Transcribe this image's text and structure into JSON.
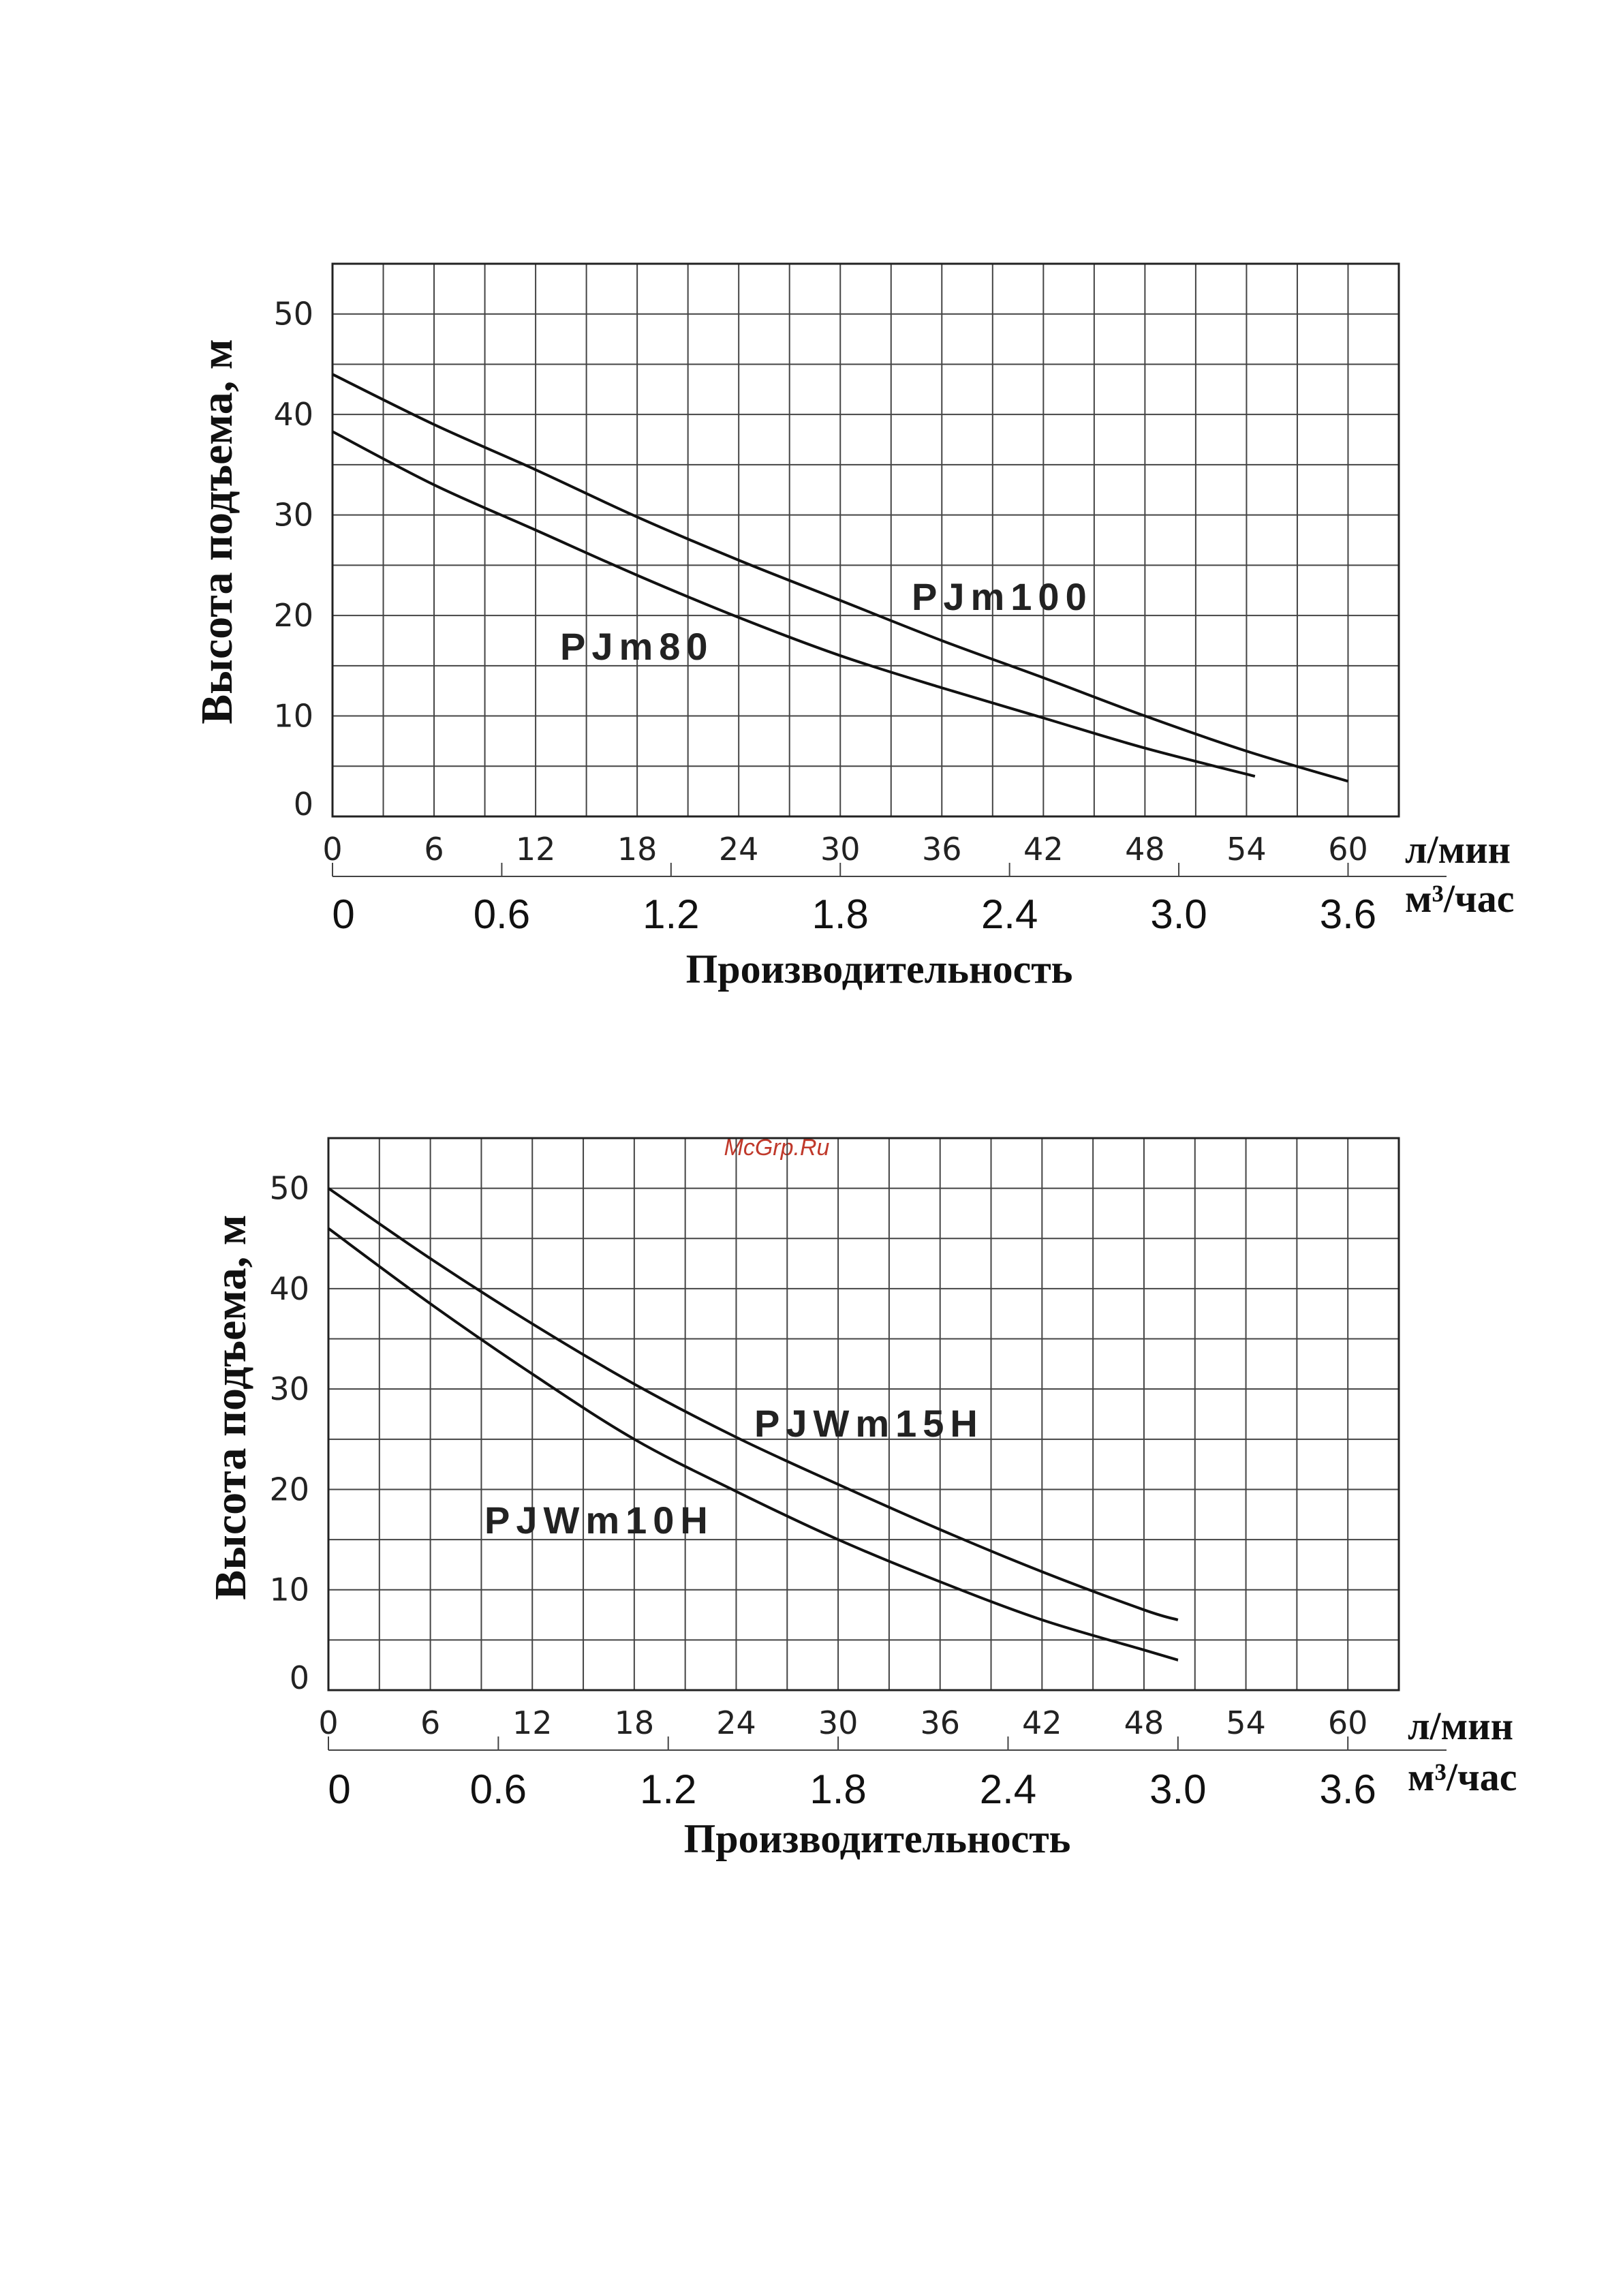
{
  "watermark": "McGrp.Ru",
  "chart_data": [
    {
      "type": "line",
      "ylabel": "Высота подъема, м",
      "xlabel": "Производительность",
      "x_unit_primary": "л/мин",
      "x_unit_secondary": "м³/час",
      "xticks": [
        "0",
        "6",
        "12",
        "18",
        "24",
        "30",
        "36",
        "42",
        "48",
        "54",
        "60"
      ],
      "x2ticks": [
        "0",
        "0.6",
        "1.2",
        "1.8",
        "2.4",
        "3.0",
        "3.6"
      ],
      "yticks": [
        "0",
        "10",
        "20",
        "30",
        "40",
        "50"
      ],
      "xlim": [
        0,
        63
      ],
      "ylim": [
        0,
        55
      ],
      "grid": true,
      "series": [
        {
          "name": "PJm100",
          "x": [
            0,
            6,
            12,
            18,
            24,
            30,
            36,
            42,
            48,
            54,
            60
          ],
          "y": [
            44,
            39,
            34.5,
            29.8,
            25.5,
            21.5,
            17.5,
            13.8,
            10,
            6.5,
            3.5
          ]
        },
        {
          "name": "PJm80",
          "x": [
            0,
            6,
            12,
            18,
            24,
            30,
            36,
            42,
            48,
            54.5
          ],
          "y": [
            38.3,
            33,
            28.5,
            24,
            19.8,
            16,
            12.8,
            9.8,
            6.8,
            4
          ]
        }
      ]
    },
    {
      "type": "line",
      "ylabel": "Высота подъема, м",
      "xlabel": "Производительность",
      "x_unit_primary": "л/мин",
      "x_unit_secondary": "м³/час",
      "xticks": [
        "0",
        "6",
        "12",
        "18",
        "24",
        "30",
        "36",
        "42",
        "48",
        "54",
        "60"
      ],
      "x2ticks": [
        "0",
        "0.6",
        "1.2",
        "1.8",
        "2.4",
        "3.0",
        "3.6"
      ],
      "yticks": [
        "0",
        "10",
        "20",
        "30",
        "40",
        "50"
      ],
      "xlim": [
        0,
        63
      ],
      "ylim": [
        0,
        55
      ],
      "grid": true,
      "series": [
        {
          "name": "PJWm15H",
          "x": [
            0,
            6,
            12,
            18,
            24,
            30,
            36,
            42,
            48,
            50
          ],
          "y": [
            50,
            43,
            36.5,
            30.5,
            25.2,
            20.5,
            16,
            11.8,
            8,
            7
          ]
        },
        {
          "name": "PJWm10H",
          "x": [
            0,
            6,
            12,
            18,
            24,
            30,
            36,
            42,
            48,
            50
          ],
          "y": [
            46,
            38.5,
            31.5,
            25,
            19.8,
            15,
            10.8,
            7,
            4,
            3
          ]
        }
      ]
    }
  ]
}
